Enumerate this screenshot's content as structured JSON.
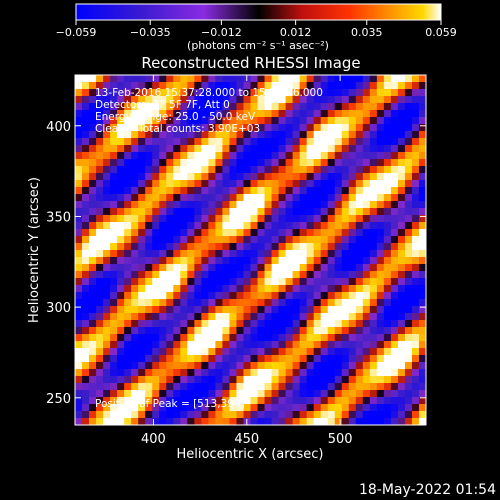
{
  "colorbar": {
    "tick_labels": [
      "−0.059",
      "−0.035",
      "−0.012",
      "0.012",
      "0.035",
      "0.059"
    ],
    "tick_values": [
      -0.059,
      -0.035,
      -0.012,
      0.012,
      0.035,
      0.059
    ],
    "range": [
      -0.059,
      0.059
    ],
    "units": "(photons cm⁻² s⁻¹ asec⁻²)"
  },
  "chart_data": {
    "type": "heatmap",
    "title": "Reconstructed RHESSI Image",
    "xlabel": "Heliocentric X (arcsec)",
    "ylabel": "Heliocentric Y (arcsec)",
    "xlim": [
      358,
      546
    ],
    "ylim": [
      235,
      428
    ],
    "x_ticks": [
      400,
      450,
      500
    ],
    "y_ticks": [
      250,
      300,
      350,
      400
    ],
    "x_tick_labels": [
      "400",
      "450",
      "500"
    ],
    "y_tick_labels": [
      "250",
      "300",
      "350",
      "400"
    ],
    "colormap": [
      "#0000ff",
      "#5a1fb4",
      "#8a2be2",
      "#000000",
      "#b01010",
      "#ff3000",
      "#ff9a00",
      "#ffd700",
      "#ffffff"
    ],
    "peak": [
      513,
      394
    ],
    "annotations": [
      "13-Feb-2016 15:37:28.000 to 15:38:36.000",
      "Detectors: 1F 5F 7F, Att 0",
      "Energy Range: 25.0 - 50.0 keV",
      "Clean    Total counts: 3.90E+03",
      "Position of Peak = [513,394]"
    ]
  },
  "footer": {
    "date": "18-May-2022 01:54"
  }
}
